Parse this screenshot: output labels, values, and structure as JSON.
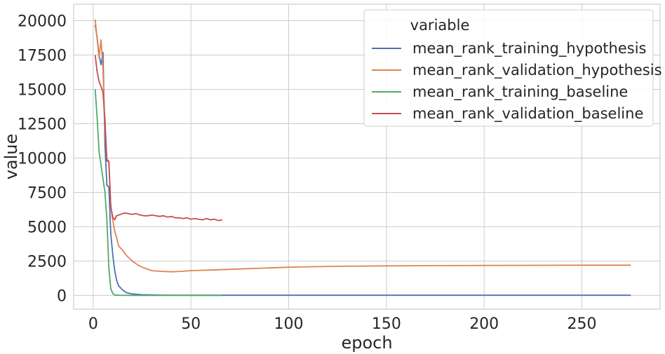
{
  "chart_data": {
    "type": "line",
    "xlabel": "epoch",
    "ylabel": "value",
    "xlim": [
      -10,
      290
    ],
    "ylim": [
      -1000,
      21200
    ],
    "xticks": [
      0,
      50,
      100,
      150,
      200,
      250
    ],
    "yticks": [
      0,
      2500,
      5000,
      7500,
      10000,
      12500,
      15000,
      17500,
      20000
    ],
    "grid": true,
    "legend": {
      "title": "variable",
      "placement": "top-right"
    },
    "series": [
      {
        "name": "mean_rank_training_hypothesis",
        "color": "#4c72b0",
        "points": [
          [
            1,
            19700
          ],
          [
            2,
            18800
          ],
          [
            3,
            17500
          ],
          [
            4,
            16800
          ],
          [
            5,
            17700
          ],
          [
            6,
            11000
          ],
          [
            7,
            8000
          ],
          [
            8,
            7900
          ],
          [
            9,
            4500
          ],
          [
            10,
            3000
          ],
          [
            11,
            1800
          ],
          [
            12,
            1100
          ],
          [
            13,
            700
          ],
          [
            15,
            400
          ],
          [
            17,
            200
          ],
          [
            20,
            100
          ],
          [
            25,
            50
          ],
          [
            35,
            20
          ],
          [
            50,
            10
          ],
          [
            100,
            10
          ],
          [
            150,
            8
          ],
          [
            200,
            8
          ],
          [
            275,
            8
          ]
        ]
      },
      {
        "name": "mean_rank_validation_hypothesis",
        "color": "#dd8452",
        "points": [
          [
            1,
            20100
          ],
          [
            2,
            18700
          ],
          [
            3,
            17300
          ],
          [
            4,
            18600
          ],
          [
            5,
            16500
          ],
          [
            6,
            12000
          ],
          [
            7,
            9900
          ],
          [
            8,
            9800
          ],
          [
            9,
            6500
          ],
          [
            10,
            5500
          ],
          [
            11,
            4700
          ],
          [
            12,
            4200
          ],
          [
            13,
            3600
          ],
          [
            15,
            3300
          ],
          [
            17,
            2900
          ],
          [
            20,
            2500
          ],
          [
            23,
            2200
          ],
          [
            26,
            2000
          ],
          [
            30,
            1800
          ],
          [
            35,
            1750
          ],
          [
            40,
            1720
          ],
          [
            45,
            1750
          ],
          [
            50,
            1800
          ],
          [
            60,
            1850
          ],
          [
            70,
            1900
          ],
          [
            80,
            1950
          ],
          [
            90,
            2000
          ],
          [
            100,
            2050
          ],
          [
            110,
            2080
          ],
          [
            125,
            2120
          ],
          [
            150,
            2150
          ],
          [
            175,
            2170
          ],
          [
            200,
            2180
          ],
          [
            225,
            2190
          ],
          [
            250,
            2200
          ],
          [
            275,
            2200
          ]
        ]
      },
      {
        "name": "mean_rank_training_baseline",
        "color": "#55a868",
        "points": [
          [
            1,
            15000
          ],
          [
            2,
            13000
          ],
          [
            3,
            10500
          ],
          [
            4,
            9500
          ],
          [
            5,
            8500
          ],
          [
            6,
            7500
          ],
          [
            7,
            5500
          ],
          [
            8,
            2000
          ],
          [
            9,
            500
          ],
          [
            10,
            150
          ],
          [
            11,
            30
          ],
          [
            13,
            10
          ],
          [
            20,
            5
          ],
          [
            40,
            5
          ],
          [
            66,
            5
          ]
        ]
      },
      {
        "name": "mean_rank_validation_baseline",
        "color": "#c44e52",
        "points": [
          [
            1,
            17500
          ],
          [
            2,
            16300
          ],
          [
            3,
            15600
          ],
          [
            4,
            15200
          ],
          [
            5,
            14800
          ],
          [
            6,
            12800
          ],
          [
            7,
            9800
          ],
          [
            8,
            9700
          ],
          [
            9,
            6500
          ],
          [
            10,
            5700
          ],
          [
            11,
            5500
          ],
          [
            12,
            5800
          ],
          [
            14,
            5900
          ],
          [
            16,
            6000
          ],
          [
            18,
            5950
          ],
          [
            20,
            5900
          ],
          [
            22,
            5950
          ],
          [
            24,
            5850
          ],
          [
            26,
            5800
          ],
          [
            28,
            5800
          ],
          [
            30,
            5850
          ],
          [
            32,
            5800
          ],
          [
            34,
            5750
          ],
          [
            36,
            5800
          ],
          [
            38,
            5700
          ],
          [
            40,
            5750
          ],
          [
            42,
            5650
          ],
          [
            44,
            5650
          ],
          [
            46,
            5600
          ],
          [
            48,
            5650
          ],
          [
            50,
            5550
          ],
          [
            52,
            5600
          ],
          [
            54,
            5550
          ],
          [
            56,
            5500
          ],
          [
            58,
            5600
          ],
          [
            60,
            5500
          ],
          [
            62,
            5550
          ],
          [
            64,
            5450
          ],
          [
            66,
            5500
          ]
        ]
      }
    ]
  }
}
